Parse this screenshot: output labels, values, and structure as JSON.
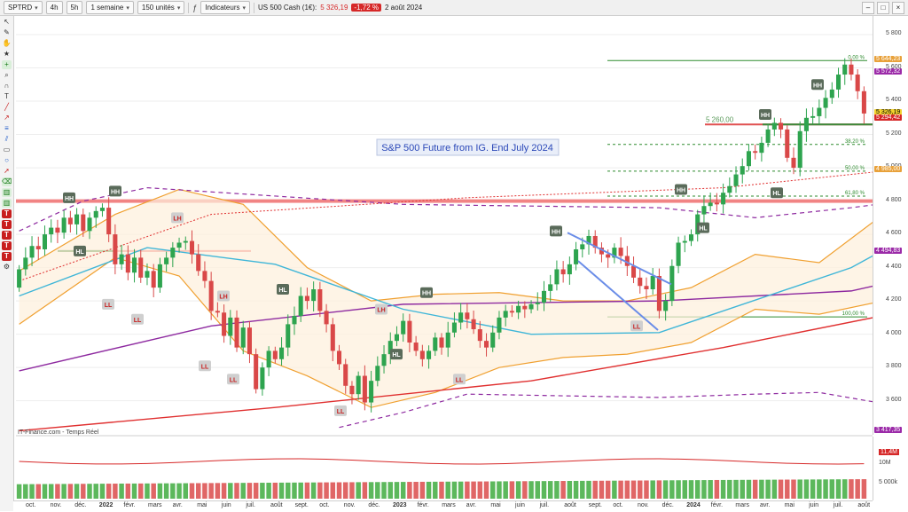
{
  "toolbar": {
    "symbol": "SPTRD",
    "period": "4h",
    "extra_btn": "5h",
    "interval": "1 semaine",
    "units": "150 unités",
    "indicators_label": "Indicateurs",
    "instrument": "US 500 Cash (1€):",
    "price": "5 326,19",
    "change": "-1,72 %",
    "date": "2 août 2024"
  },
  "chart": {
    "annotation": "S&P 500 Future from IG. End July 2024",
    "source": "IT-Finance.com - Temps Réel",
    "level_label": "5 260,00",
    "fib_labels": [
      "0.00 %",
      "38,20 %",
      "50,00 %",
      "61,80 %",
      "100,00 %"
    ],
    "price_ticks": [
      "5 800",
      "5 600",
      "5 400",
      "5 200",
      "5 000",
      "4 800",
      "4 600",
      "4 400",
      "4 200",
      "4 000",
      "3 800",
      "3 600"
    ],
    "price_tags": [
      {
        "text": "5 644,23",
        "color": "#e8a13a"
      },
      {
        "text": "5 572,32",
        "color": "#9b2aa8"
      },
      {
        "text": "5 326,19",
        "color": "#f2d22e"
      },
      {
        "text": "5 294,42",
        "color": "#d62828"
      },
      {
        "text": "4 985,00",
        "color": "#e8a13a"
      },
      {
        "text": "4 494,83",
        "color": "#9b2aa8"
      },
      {
        "text": "3 417,35",
        "color": "#9b2aa8"
      }
    ],
    "volume_ticks": [
      "11,4M",
      "10M",
      "5 000k"
    ],
    "time_labels": [
      "oct.",
      "nov.",
      "déc.",
      "2022",
      "févr.",
      "mars",
      "avr.",
      "mai",
      "juin",
      "juil.",
      "août",
      "sept.",
      "oct.",
      "nov.",
      "déc.",
      "2023",
      "févr.",
      "mars",
      "avr.",
      "mai",
      "juin",
      "juil.",
      "août",
      "sept.",
      "oct.",
      "nov.",
      "déc.",
      "2024",
      "févr.",
      "mars",
      "avr.",
      "mai",
      "juin",
      "juil.",
      "août"
    ],
    "markers": [
      "HL",
      "HH",
      "LL",
      "LL",
      "LH",
      "LH",
      "LL",
      "LL",
      "LL",
      "LH",
      "LL",
      "HH",
      "HL",
      "HL",
      "HH",
      "LL",
      "HH",
      "HL",
      "HH",
      "HL",
      "HH"
    ]
  },
  "colors": {
    "up": "#2ea44f",
    "down": "#d94848",
    "fib": "#2e8b2e",
    "ma_cyan": "#3fb6d8",
    "ma_purple": "#8e2aa0",
    "ma_red": "#e03030",
    "bollinger": "#f0a030",
    "channel": "#6a8de8"
  },
  "toolbox_icons": [
    "cursor-icon",
    "pen-icon",
    "hand-icon",
    "star-icon",
    "crosshair-icon",
    "zoom-icon",
    "magnet-icon",
    "text-icon",
    "line-icon",
    "ray-icon",
    "fib-icon",
    "channel-icon",
    "rect-icon",
    "circle-icon",
    "arrow-icon",
    "eraser-icon",
    "bars-icon",
    "bars-icon",
    "text-icon",
    "text-icon",
    "text-icon",
    "text-icon",
    "text-icon",
    "settings-icon"
  ],
  "chart_data": {
    "type": "candlestick",
    "y_range": [
      3417,
      5880
    ],
    "volume_range": [
      0,
      12500000
    ],
    "x_range": [
      "2021-10",
      "2024-08"
    ],
    "weekly": [
      [
        4280,
        4390
      ],
      [
        4390,
        4460
      ],
      [
        4460,
        4530
      ],
      [
        4530,
        4510
      ],
      [
        4510,
        4600
      ],
      [
        4600,
        4640
      ],
      [
        4640,
        4610
      ],
      [
        4610,
        4700
      ],
      [
        4700,
        4660
      ],
      [
        4660,
        4720
      ],
      [
        4720,
        4620
      ],
      [
        4620,
        4700
      ],
      [
        4700,
        4740
      ],
      [
        4740,
        4760
      ],
      [
        4760,
        4600
      ],
      [
        4600,
        4420
      ],
      [
        4420,
        4480
      ],
      [
        4480,
        4370
      ],
      [
        4370,
        4460
      ],
      [
        4460,
        4340
      ],
      [
        4340,
        4380
      ],
      [
        4380,
        4280
      ],
      [
        4280,
        4420
      ],
      [
        4420,
        4460
      ],
      [
        4460,
        4520
      ],
      [
        4520,
        4550
      ],
      [
        4550,
        4560
      ],
      [
        4560,
        4480
      ],
      [
        4480,
        4380
      ],
      [
        4380,
        4320
      ],
      [
        4320,
        4140
      ],
      [
        4140,
        4130
      ],
      [
        4130,
        3990
      ],
      [
        3990,
        4100
      ],
      [
        4100,
        3920
      ],
      [
        3920,
        4040
      ],
      [
        4040,
        3880
      ],
      [
        3880,
        3670
      ],
      [
        3670,
        3800
      ],
      [
        3800,
        3900
      ],
      [
        3900,
        3850
      ],
      [
        3850,
        3920
      ],
      [
        3920,
        4060
      ],
      [
        4060,
        4110
      ],
      [
        4110,
        4230
      ],
      [
        4230,
        4200
      ],
      [
        4200,
        4270
      ],
      [
        4270,
        4140
      ],
      [
        4140,
        4060
      ],
      [
        4060,
        3900
      ],
      [
        3900,
        3820
      ],
      [
        3820,
        3690
      ],
      [
        3690,
        3640
      ],
      [
        3640,
        3750
      ],
      [
        3750,
        3590
      ],
      [
        3590,
        3720
      ],
      [
        3720,
        3810
      ],
      [
        3810,
        3880
      ],
      [
        3880,
        3960
      ],
      [
        3960,
        4000
      ],
      [
        4000,
        4080
      ],
      [
        4080,
        3950
      ],
      [
        3950,
        3900
      ],
      [
        3900,
        3850
      ],
      [
        3850,
        3900
      ],
      [
        3900,
        3980
      ],
      [
        3980,
        3920
      ],
      [
        3920,
        4010
      ],
      [
        4010,
        4070
      ],
      [
        4070,
        4130
      ],
      [
        4130,
        4090
      ],
      [
        4090,
        4030
      ],
      [
        4030,
        3960
      ],
      [
        3960,
        3920
      ],
      [
        3920,
        4010
      ],
      [
        4010,
        4100
      ],
      [
        4100,
        4140
      ],
      [
        4140,
        4130
      ],
      [
        4130,
        4170
      ],
      [
        4170,
        4150
      ],
      [
        4150,
        4180
      ],
      [
        4180,
        4190
      ],
      [
        4190,
        4260
      ],
      [
        4260,
        4300
      ],
      [
        4300,
        4390
      ],
      [
        4390,
        4360
      ],
      [
        4360,
        4420
      ],
      [
        4420,
        4510
      ],
      [
        4510,
        4540
      ],
      [
        4540,
        4590
      ],
      [
        4590,
        4520
      ],
      [
        4520,
        4480
      ],
      [
        4480,
        4460
      ],
      [
        4460,
        4520
      ],
      [
        4520,
        4470
      ],
      [
        4470,
        4410
      ],
      [
        4410,
        4340
      ],
      [
        4340,
        4290
      ],
      [
        4290,
        4270
      ],
      [
        4270,
        4350
      ],
      [
        4350,
        4140
      ],
      [
        4140,
        4200
      ],
      [
        4200,
        4410
      ],
      [
        4410,
        4550
      ],
      [
        4550,
        4560
      ],
      [
        4560,
        4600
      ],
      [
        4600,
        4720
      ],
      [
        4720,
        4770
      ],
      [
        4770,
        4790
      ],
      [
        4790,
        4780
      ],
      [
        4780,
        4850
      ],
      [
        4850,
        4890
      ],
      [
        4890,
        4960
      ],
      [
        4960,
        5010
      ],
      [
        5010,
        5100
      ],
      [
        5100,
        5090
      ],
      [
        5090,
        5150
      ],
      [
        5150,
        5230
      ],
      [
        5230,
        5270
      ],
      [
        5270,
        5230
      ],
      [
        5230,
        5060
      ],
      [
        5060,
        5000
      ],
      [
        5000,
        5220
      ],
      [
        5220,
        5300
      ],
      [
        5300,
        5310
      ],
      [
        5310,
        5360
      ],
      [
        5360,
        5420
      ],
      [
        5420,
        5470
      ],
      [
        5470,
        5560
      ],
      [
        5560,
        5620
      ],
      [
        5620,
        5560
      ],
      [
        5560,
        5460
      ],
      [
        5460,
        5326
      ]
    ],
    "lines": {
      "ma_cyan": [
        [
          0,
          4230
        ],
        [
          20,
          4520
        ],
        [
          40,
          4420
        ],
        [
          60,
          4150
        ],
        [
          80,
          4000
        ],
        [
          100,
          4010
        ],
        [
          130,
          4400
        ],
        [
          150,
          4820
        ],
        [
          158,
          4900
        ]
      ],
      "ma_purple": [
        [
          0,
          3780
        ],
        [
          30,
          4050
        ],
        [
          60,
          4180
        ],
        [
          100,
          4200
        ],
        [
          130,
          4260
        ],
        [
          158,
          4500
        ]
      ],
      "ma_red": [
        [
          0,
          3420
        ],
        [
          40,
          3560
        ],
        [
          80,
          3720
        ],
        [
          110,
          3920
        ],
        [
          140,
          4150
        ],
        [
          158,
          4330
        ]
      ],
      "dashed_purple_top": [
        [
          0,
          4620
        ],
        [
          10,
          4800
        ],
        [
          20,
          4880
        ],
        [
          40,
          4830
        ],
        [
          60,
          4780
        ],
        [
          80,
          4770
        ],
        [
          100,
          4760
        ],
        [
          110,
          4720
        ],
        [
          115,
          4700
        ],
        [
          130,
          4760
        ],
        [
          140,
          4810
        ],
        [
          150,
          4900
        ],
        [
          158,
          5000
        ]
      ],
      "dashed_purple_bottom": [
        [
          50,
          3440
        ],
        [
          60,
          3530
        ],
        [
          70,
          3640
        ],
        [
          85,
          3630
        ],
        [
          100,
          3620
        ],
        [
          115,
          3640
        ],
        [
          125,
          3650
        ],
        [
          140,
          3550
        ],
        [
          150,
          3460
        ],
        [
          158,
          3430
        ]
      ],
      "dashed_red": [
        [
          0,
          4320
        ],
        [
          30,
          4720
        ],
        [
          50,
          4770
        ],
        [
          70,
          4820
        ],
        [
          90,
          4850
        ],
        [
          110,
          4880
        ],
        [
          140,
          5000
        ],
        [
          150,
          5100
        ],
        [
          158,
          5270
        ]
      ]
    }
  }
}
